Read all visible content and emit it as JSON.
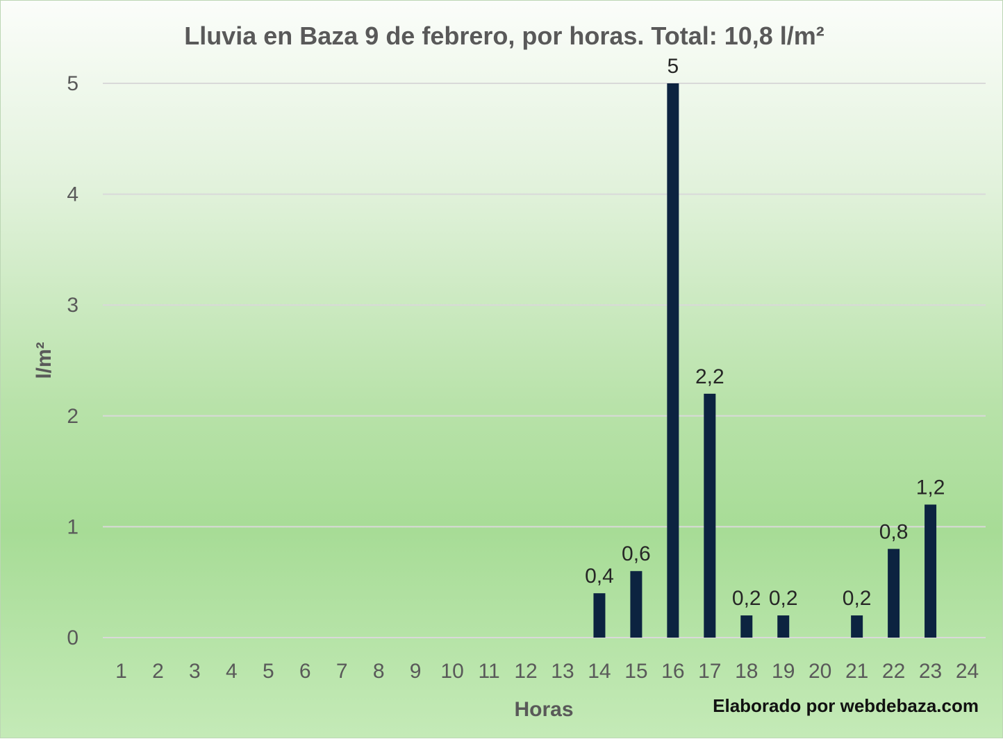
{
  "chart_data": {
    "type": "bar",
    "title": "Lluvia en Baza 9 de febrero, por horas. Total: 10,8 l/m²",
    "xlabel": "Horas",
    "ylabel": "l/m²",
    "ylim": [
      0,
      5
    ],
    "yticks": [
      "0",
      "1",
      "2",
      "3",
      "4",
      "5"
    ],
    "categories": [
      "1",
      "2",
      "3",
      "4",
      "5",
      "6",
      "7",
      "8",
      "9",
      "10",
      "11",
      "12",
      "13",
      "14",
      "15",
      "16",
      "17",
      "18",
      "19",
      "20",
      "21",
      "22",
      "23",
      "24"
    ],
    "values": [
      0,
      0,
      0,
      0,
      0,
      0,
      0,
      0,
      0,
      0,
      0,
      0,
      0,
      0.4,
      0.6,
      5,
      2.2,
      0.2,
      0.2,
      0,
      0.2,
      0.8,
      1.2,
      0
    ],
    "data_labels": [
      "",
      "",
      "",
      "",
      "",
      "",
      "",
      "",
      "",
      "",
      "",
      "",
      "",
      "0,4",
      "0,6",
      "5",
      "2,2",
      "0,2",
      "0,2",
      "",
      "0,2",
      "0,8",
      "1,2",
      ""
    ],
    "grid": true,
    "legend": "none",
    "bar_color": "#0c2340",
    "credit": "Elaborado por webdebaza.com"
  }
}
